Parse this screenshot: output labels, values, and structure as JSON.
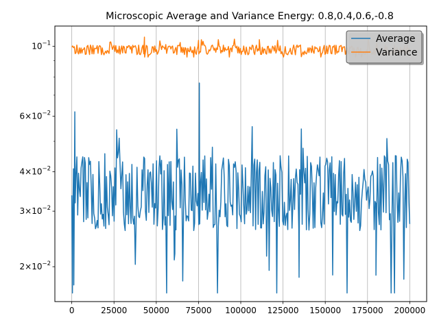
{
  "chart_data": {
    "type": "line",
    "title": "Microscopic Average and Variance Energy: 0.8,0.4,0.6,-0.8",
    "xlabel": "",
    "ylabel": "",
    "xlim": [
      -10000,
      210000
    ],
    "ylim": [
      0.0155,
      0.116
    ],
    "yscale": "log",
    "grid": {
      "x": true,
      "y": false
    },
    "legend_position": "upper right",
    "x_ticks": [
      {
        "value": 0,
        "label": "0"
      },
      {
        "value": 25000,
        "label": "25000"
      },
      {
        "value": 50000,
        "label": "50000"
      },
      {
        "value": 75000,
        "label": "75000"
      },
      {
        "value": 100000,
        "label": "100000"
      },
      {
        "value": 125000,
        "label": "125000"
      },
      {
        "value": 150000,
        "label": "150000"
      },
      {
        "value": 175000,
        "label": "175000"
      },
      {
        "value": 200000,
        "label": "200000"
      }
    ],
    "y_ticks": [
      {
        "value": 0.02,
        "mantissa": "2",
        "base": "10",
        "exp": "−2"
      },
      {
        "value": 0.03,
        "mantissa": "3",
        "base": "10",
        "exp": "−2"
      },
      {
        "value": 0.04,
        "mantissa": "4",
        "base": "10",
        "exp": "−2"
      },
      {
        "value": 0.06,
        "mantissa": "6",
        "base": "10",
        "exp": "−2"
      },
      {
        "value": 0.1,
        "mantissa": "",
        "base": "10",
        "exp": "−1"
      }
    ],
    "series": [
      {
        "name": "Average",
        "color": "#1f77b4",
        "x_start": 0,
        "x_end": 200000,
        "num_points": 400,
        "summary": {
          "center": 0.033,
          "typical_low": 0.026,
          "typical_high": 0.045,
          "min": 0.0165,
          "max": 0.0765
        },
        "notable_points": [
          {
            "x": 400,
            "y": 0.0165
          },
          {
            "x": 1200,
            "y": 0.0175
          },
          {
            "x": 1800,
            "y": 0.062
          },
          {
            "x": 75500,
            "y": 0.0765
          },
          {
            "x": 134500,
            "y": 0.0185
          },
          {
            "x": 180000,
            "y": 0.0188
          },
          {
            "x": 61000,
            "y": 0.022
          }
        ]
      },
      {
        "name": "Variance",
        "color": "#ff7f0e",
        "x_start": 0,
        "x_end": 200000,
        "num_points": 400,
        "summary": {
          "center": 0.097,
          "typical_low": 0.094,
          "typical_high": 0.101,
          "min": 0.0925,
          "max": 0.107
        },
        "notable_points": [
          {
            "x": 43000,
            "y": 0.107
          },
          {
            "x": 111000,
            "y": 0.105
          },
          {
            "x": 75000,
            "y": 0.1045
          }
        ]
      }
    ]
  },
  "colors": {
    "average": "#1f77b4",
    "variance": "#ff7f0e",
    "grid": "#b0b0b0",
    "legend_bg": "#cccccc",
    "legend_border": "#555555"
  }
}
